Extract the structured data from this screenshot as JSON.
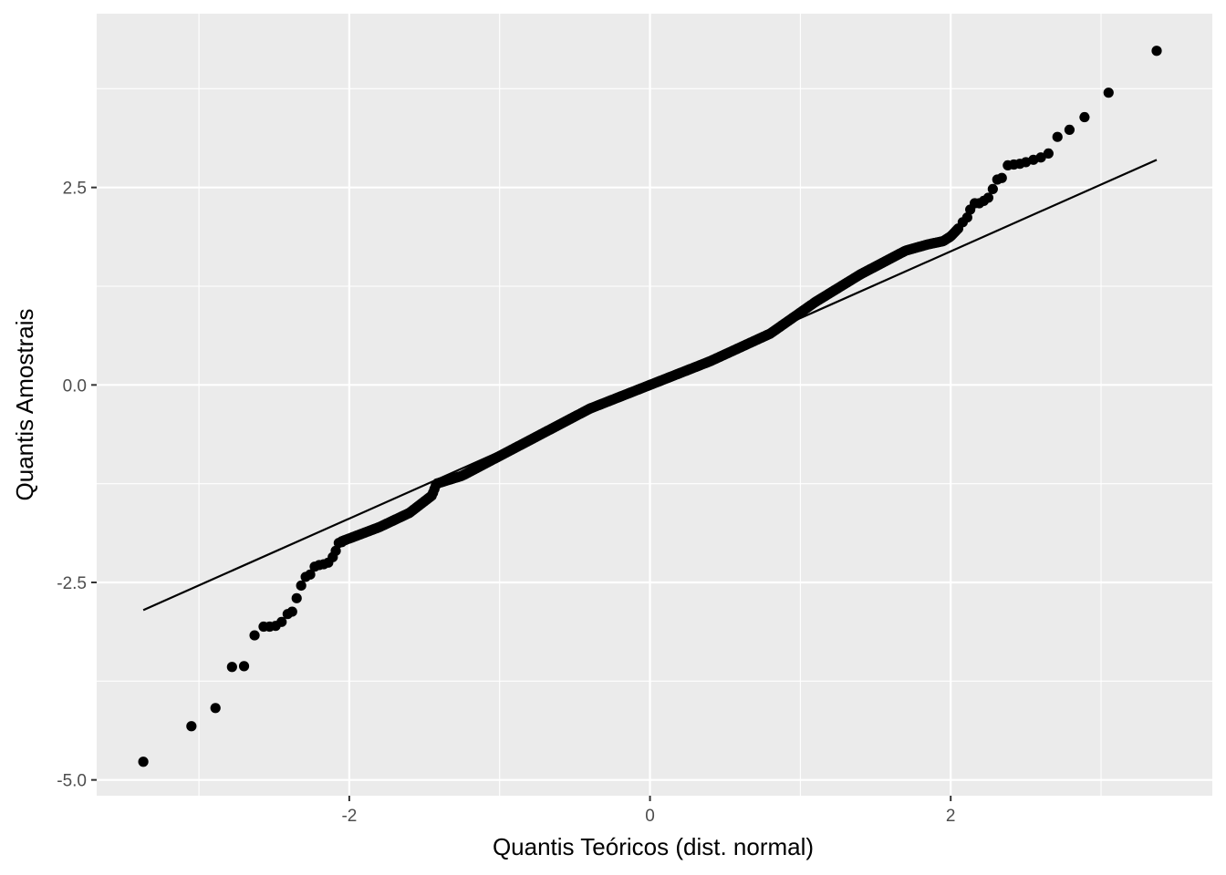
{
  "chart_data": {
    "type": "scatter",
    "subtype": "qq-plot",
    "title": "",
    "xlabel": "Quantis Teóricos (dist. normal)",
    "ylabel": "Quantis Amostrais",
    "xlim": [
      -3.68,
      3.74
    ],
    "ylim": [
      -5.2,
      4.7
    ],
    "x_ticks": [
      -2,
      0,
      2
    ],
    "x_tick_labels": [
      "-2",
      "0",
      "2"
    ],
    "y_ticks": [
      -5.0,
      -2.5,
      0.0,
      2.5
    ],
    "y_tick_labels": [
      "-5.0",
      "-2.5",
      "0.0",
      "2.5"
    ],
    "grid": true,
    "legend": "none",
    "colors": {
      "panel_background": "#EBEBEB",
      "grid": "#FFFFFF",
      "points": "#000000",
      "reference_line": "#000000"
    },
    "reference_line": {
      "x": [
        -3.37,
        3.37
      ],
      "y": [
        -2.85,
        2.85
      ]
    },
    "tail_points": {
      "x": [
        -3.37,
        -3.05,
        -2.89,
        -2.78,
        -2.7,
        -2.63,
        -2.57,
        -2.53,
        -2.49,
        -2.45,
        -2.41,
        -2.38,
        -2.35,
        -2.32,
        -2.29,
        -2.26,
        -2.23,
        -2.2,
        -2.17,
        -2.14,
        -2.11,
        -2.09,
        -2.07,
        -2.05,
        2.08,
        2.11,
        2.13,
        2.16,
        2.19,
        2.22,
        2.25,
        2.28,
        2.31,
        2.34,
        2.38,
        2.42,
        2.46,
        2.5,
        2.55,
        2.6,
        2.65,
        2.71,
        2.79,
        2.89,
        3.05,
        3.37
      ],
      "y": [
        -4.77,
        -4.32,
        -4.09,
        -3.57,
        -3.56,
        -3.17,
        -3.06,
        -3.06,
        -3.05,
        -3.0,
        -2.9,
        -2.87,
        -2.7,
        -2.54,
        -2.43,
        -2.4,
        -2.3,
        -2.28,
        -2.27,
        -2.25,
        -2.18,
        -2.1,
        -2.0,
        -1.99,
        2.06,
        2.12,
        2.22,
        2.3,
        2.3,
        2.33,
        2.37,
        2.48,
        2.6,
        2.62,
        2.78,
        2.79,
        2.8,
        2.82,
        2.85,
        2.88,
        2.93,
        3.14,
        3.23,
        3.39,
        3.7,
        4.23
      ]
    },
    "body_curve": {
      "n": 440,
      "x": [
        -2.05,
        -1.8,
        -1.6,
        -1.45,
        -1.42,
        -1.25,
        -1.0,
        -0.7,
        -0.4,
        0.0,
        0.4,
        0.8,
        1.1,
        1.4,
        1.7,
        1.85,
        1.95,
        2.0,
        2.05
      ],
      "y": [
        -1.98,
        -1.8,
        -1.62,
        -1.4,
        -1.25,
        -1.15,
        -0.9,
        -0.6,
        -0.3,
        0.0,
        0.3,
        0.65,
        1.05,
        1.4,
        1.7,
        1.78,
        1.82,
        1.88,
        1.98
      ]
    }
  }
}
